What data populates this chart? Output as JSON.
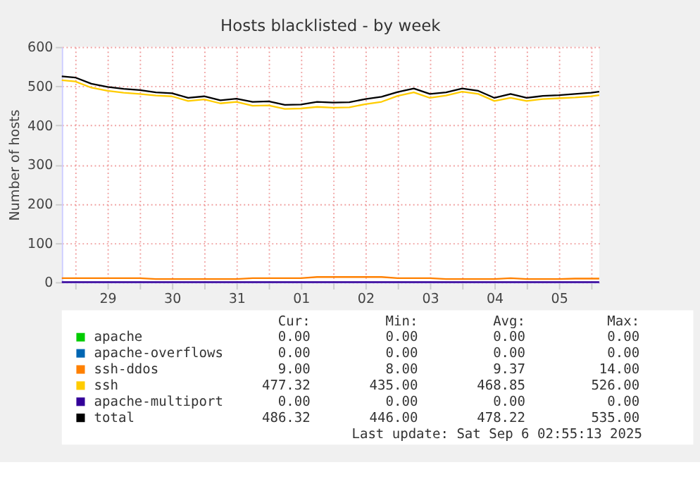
{
  "chart_data": {
    "type": "line",
    "title": "Hosts blacklisted - by week",
    "ylabel": "Number of hosts",
    "x": [
      "2025-08-28T19:00",
      "2025-08-29T00:00",
      "2025-08-29T06:00",
      "2025-08-29T12:00",
      "2025-08-29T18:00",
      "2025-08-30T00:00",
      "2025-08-30T06:00",
      "2025-08-30T12:00",
      "2025-08-30T18:00",
      "2025-08-31T00:00",
      "2025-08-31T06:00",
      "2025-08-31T12:00",
      "2025-08-31T18:00",
      "2025-09-01T00:00",
      "2025-09-01T06:00",
      "2025-09-01T12:00",
      "2025-09-01T18:00",
      "2025-09-02T00:00",
      "2025-09-02T06:00",
      "2025-09-02T12:00",
      "2025-09-02T18:00",
      "2025-09-03T00:00",
      "2025-09-03T06:00",
      "2025-09-03T12:00",
      "2025-09-03T18:00",
      "2025-09-04T00:00",
      "2025-09-04T06:00",
      "2025-09-04T12:00",
      "2025-09-04T18:00",
      "2025-09-05T00:00",
      "2025-09-05T06:00",
      "2025-09-05T12:00",
      "2025-09-05T18:00",
      "2025-09-06T00:00",
      "2025-09-06T03:00"
    ],
    "series": [
      {
        "name": "apache",
        "color": "#00cc00",
        "values": [
          null,
          null,
          null,
          null,
          null,
          null,
          null,
          null,
          null,
          null,
          null,
          null,
          null,
          null,
          null,
          null,
          null,
          null,
          null,
          null,
          null,
          null,
          null,
          null,
          null,
          null,
          null,
          null,
          null,
          null,
          null,
          null,
          null,
          null,
          null
        ]
      },
      {
        "name": "apache-overflows",
        "color": "#0066b3",
        "values": [
          null,
          null,
          null,
          null,
          null,
          null,
          null,
          null,
          null,
          null,
          null,
          null,
          null,
          null,
          null,
          null,
          null,
          null,
          null,
          null,
          null,
          null,
          null,
          null,
          null,
          null,
          null,
          null,
          null,
          null,
          null,
          null,
          null,
          null,
          null
        ]
      },
      {
        "name": "ssh-ddos",
        "color": "#ff8000",
        "values": [
          10,
          10,
          10,
          10,
          10,
          10,
          8,
          8,
          8,
          8,
          8,
          8,
          10,
          10,
          10,
          10,
          13,
          13,
          13,
          13,
          13,
          10,
          10,
          10,
          8,
          8,
          8,
          8,
          10,
          8,
          8,
          8,
          9,
          9,
          9
        ]
      },
      {
        "name": "ssh",
        "color": "#ffcc00",
        "values": [
          515,
          512,
          496,
          488,
          483,
          480,
          476,
          474,
          462,
          466,
          456,
          460,
          450,
          451,
          442,
          443,
          447,
          445,
          446,
          454,
          460,
          475,
          484,
          470,
          476,
          486,
          480,
          462,
          470,
          462,
          467,
          469,
          471,
          474,
          477
        ]
      },
      {
        "name": "apache-multiport",
        "color": "#330099",
        "values": [
          0,
          0,
          0,
          0,
          0,
          0,
          0,
          0,
          0,
          0,
          0,
          0,
          0,
          0,
          0,
          0,
          0,
          0,
          0,
          0,
          0,
          0,
          0,
          0,
          0,
          0,
          0,
          0,
          0,
          0,
          0,
          0,
          0,
          0,
          0
        ]
      },
      {
        "name": "total",
        "color": "#000000",
        "values": [
          525,
          522,
          506,
          498,
          493,
          490,
          484,
          482,
          470,
          474,
          464,
          468,
          460,
          461,
          452,
          453,
          460,
          458,
          459,
          467,
          473,
          485,
          494,
          480,
          484,
          494,
          488,
          470,
          480,
          470,
          475,
          477,
          480,
          483,
          486
        ]
      }
    ],
    "xlim": [
      "2025-08-28T19:00",
      "2025-09-06T03:00"
    ],
    "xticks": [
      {
        "value": "2025-08-29T00:00",
        "label": null
      },
      {
        "value": "2025-08-29T12:00",
        "label": "29"
      },
      {
        "value": "2025-08-30T00:00",
        "label": null
      },
      {
        "value": "2025-08-30T12:00",
        "label": "30"
      },
      {
        "value": "2025-08-31T00:00",
        "label": null
      },
      {
        "value": "2025-08-31T12:00",
        "label": "31"
      },
      {
        "value": "2025-09-01T00:00",
        "label": null
      },
      {
        "value": "2025-09-01T12:00",
        "label": "01"
      },
      {
        "value": "2025-09-02T00:00",
        "label": null
      },
      {
        "value": "2025-09-02T12:00",
        "label": "02"
      },
      {
        "value": "2025-09-03T00:00",
        "label": null
      },
      {
        "value": "2025-09-03T12:00",
        "label": "03"
      },
      {
        "value": "2025-09-04T00:00",
        "label": null
      },
      {
        "value": "2025-09-04T12:00",
        "label": "04"
      },
      {
        "value": "2025-09-05T00:00",
        "label": null
      },
      {
        "value": "2025-09-05T12:00",
        "label": "05"
      },
      {
        "value": "2025-09-06T00:00",
        "label": null
      }
    ],
    "ylim": [
      0,
      600
    ],
    "yticks": [
      0,
      100,
      200,
      300,
      400,
      500,
      600
    ],
    "grid": true,
    "legend": "bottom",
    "marker": "none",
    "line_style": "solid",
    "annotations": [
      "Cur:",
      "Min:",
      "Avg:",
      "Max:",
      "0.00",
      "0.00",
      "0.00",
      "0.00",
      "0.00",
      "0.00",
      "0.00",
      "0.00",
      "9.00",
      "8.00",
      "9.37",
      "14.00",
      "477.32",
      "435.00",
      "468.85",
      "526.00",
      "0.00",
      "0.00",
      "0.00",
      "0.00",
      "486.32",
      "446.00",
      "478.22",
      "535.00",
      "Last update:  Sat Sep  6 02:55:13 2025"
    ]
  }
}
